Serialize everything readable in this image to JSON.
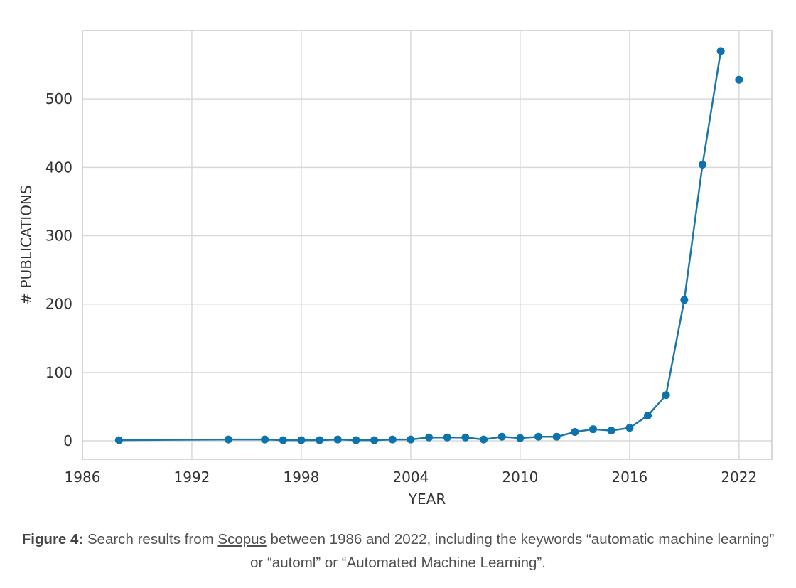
{
  "chart_data": {
    "type": "line",
    "xlabel": "YEAR",
    "ylabel": "# PUBLICATIONS",
    "xlim": [
      1986,
      2023.8
    ],
    "ylim": [
      -27,
      600
    ],
    "x_ticks": [
      1986,
      1992,
      1998,
      2004,
      2010,
      2016,
      2022
    ],
    "y_ticks": [
      0,
      100,
      200,
      300,
      400,
      500
    ],
    "grid": true,
    "series": [
      {
        "x": [
          1988,
          1994,
          1996,
          1997,
          1998,
          1999,
          2000,
          2001,
          2002,
          2003,
          2004,
          2005,
          2006,
          2007,
          2008,
          2009,
          2010,
          2011,
          2012,
          2013,
          2014,
          2015,
          2016,
          2017,
          2018,
          2019,
          2020,
          2021
        ],
        "y": [
          1,
          2,
          2,
          1,
          1,
          1,
          2,
          1,
          1,
          2,
          2,
          5,
          5,
          5,
          2,
          6,
          4,
          6,
          6,
          13,
          17,
          15,
          19,
          37,
          67,
          206,
          404,
          570
        ]
      },
      {
        "x": [
          2022
        ],
        "y": [
          528
        ]
      }
    ],
    "colors": {
      "line": "#1b76a8",
      "marker": "#0c73ad",
      "grid": "#d9d9d9",
      "frame": "#cccccc"
    }
  },
  "caption": {
    "label": "Figure 4:",
    "text_before": " Search results from ",
    "link": "Scopus",
    "text_after": " between 1986 and 2022, including the keywords “automatic machine learning” or “automl” or “Automated Machine Learning”."
  }
}
